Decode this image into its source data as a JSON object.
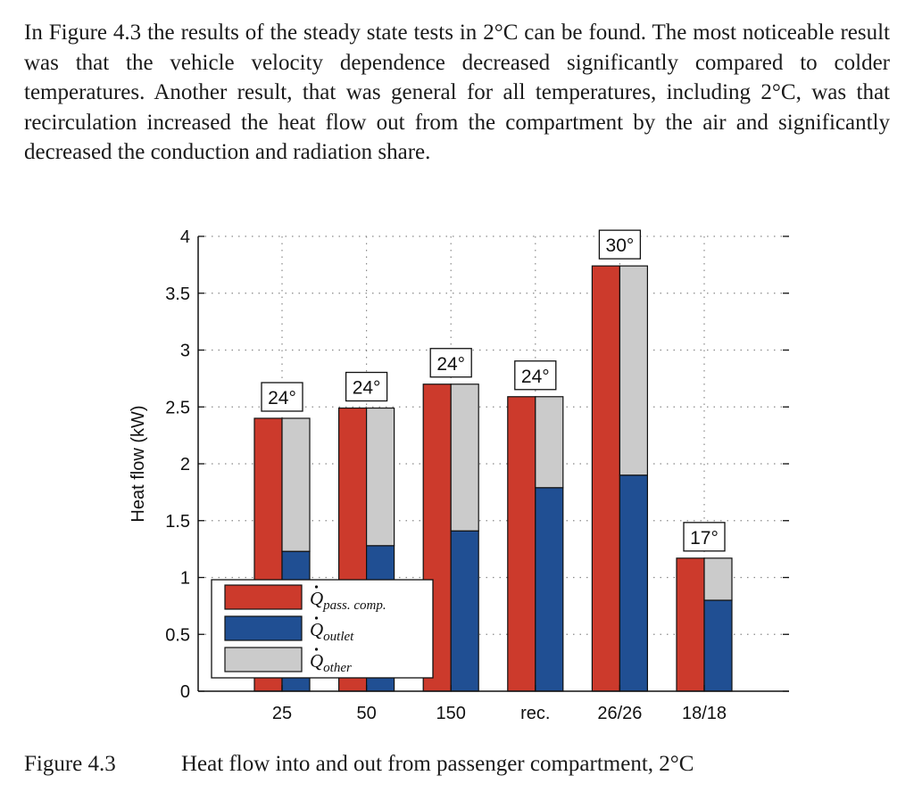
{
  "paragraph": "In Figure 4.3 the results of the steady state tests in 2°C can be found. The most noticeable result was that the vehicle velocity dependence decreased significantly compared to colder temperatures. Another result, that was general for all temperatures, including 2°C, was that recirculation increased the heat flow out from the compartment by the air and significantly decreased the conduction and radiation share.",
  "caption": {
    "number": "Figure 4.3",
    "text": "Heat flow into and out from passenger compartment, 2°C"
  },
  "chart_data": {
    "type": "bar",
    "ylabel": "Heat flow (kW)",
    "xlabel": "",
    "ylim": [
      0,
      4
    ],
    "yticks": [
      0,
      0.5,
      1,
      1.5,
      2,
      2.5,
      3,
      3.5,
      4
    ],
    "ytick_labels": [
      "0",
      "0.5",
      "1",
      "1.5",
      "2",
      "2.5",
      "3",
      "3.5",
      "4"
    ],
    "grid": true,
    "legend_position": "bottom-left",
    "categories": [
      "25",
      "50",
      "150",
      "rec.",
      "26/26",
      "18/18"
    ],
    "annotations": [
      "24°",
      "24°",
      "24°",
      "24°",
      "30°",
      "17°"
    ],
    "series": [
      {
        "name": "Q̇pass. comp.",
        "color": "#cc3a2c",
        "values": [
          2.4,
          2.49,
          2.7,
          2.59,
          3.74,
          1.17
        ]
      },
      {
        "name": "Q̇outlet",
        "color": "#204f93",
        "values": [
          1.23,
          1.28,
          1.41,
          1.79,
          1.9,
          0.8
        ]
      },
      {
        "name": "Q̇other",
        "color": "#cbcbcb",
        "values": [
          1.17,
          1.21,
          1.29,
          0.8,
          1.84,
          0.37
        ]
      }
    ],
    "legend": [
      {
        "base": "Q",
        "sub": "pass. comp."
      },
      {
        "base": "Q",
        "sub": "outlet"
      },
      {
        "base": "Q",
        "sub": "other"
      }
    ]
  }
}
